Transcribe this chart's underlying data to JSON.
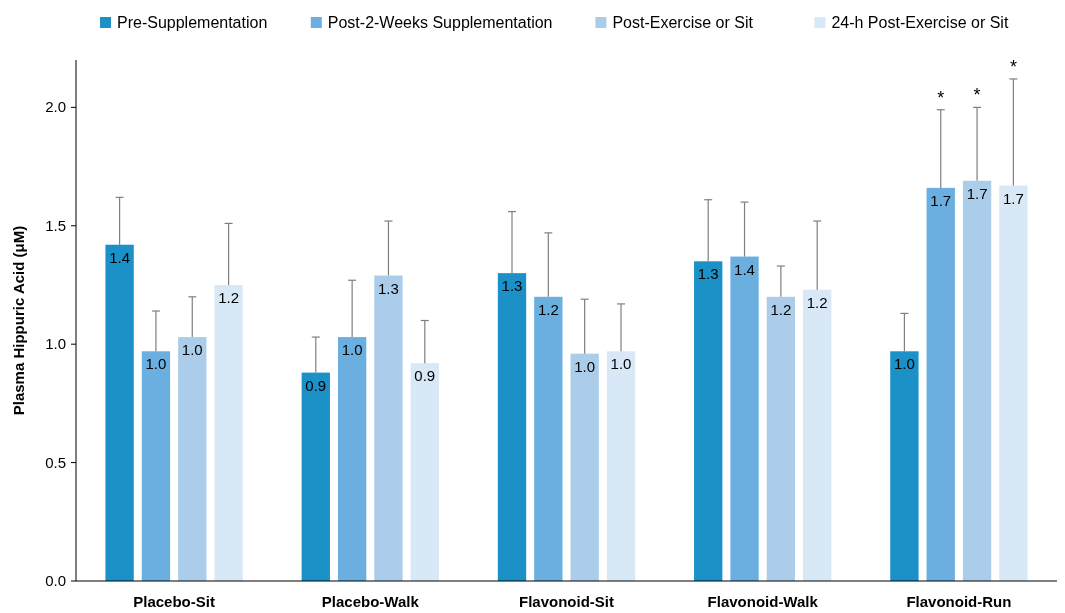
{
  "chart_data": {
    "type": "bar",
    "ylabel": "Plasma Hippuric Acid (μM)",
    "categories": [
      "Placebo-Sit",
      "Placebo-Walk",
      "Flavonoid-Sit",
      "Flavonoid-Walk",
      "Flavonoid-Run"
    ],
    "series": [
      {
        "name": "Pre-Supplementation",
        "color": "#1b91c8",
        "values": [
          1.42,
          0.88,
          1.3,
          1.35,
          0.97
        ],
        "errors": [
          [
            1.42,
            1.62
          ],
          [
            0.88,
            1.03
          ],
          [
            1.3,
            1.56
          ],
          [
            1.35,
            1.61
          ],
          [
            0.97,
            1.13
          ]
        ],
        "value_labels": [
          "1.4",
          "0.9",
          "1.3",
          "1.3",
          "1.0"
        ]
      },
      {
        "name": "Post-2-Weeks Supplementation",
        "color": "#6aafdf",
        "values": [
          0.97,
          1.03,
          1.2,
          1.37,
          1.66
        ],
        "errors": [
          [
            0.97,
            1.14
          ],
          [
            1.03,
            1.27
          ],
          [
            1.2,
            1.47
          ],
          [
            1.37,
            1.6
          ],
          [
            1.66,
            1.99
          ]
        ],
        "value_labels": [
          "1.0",
          "1.0",
          "1.2",
          "1.4",
          "1.7"
        ]
      },
      {
        "name": "Post-Exercise or Sit",
        "color": "#abcde9",
        "values": [
          1.03,
          1.29,
          0.96,
          1.2,
          1.69
        ],
        "errors": [
          [
            1.03,
            1.2
          ],
          [
            1.29,
            1.52
          ],
          [
            0.96,
            1.19
          ],
          [
            1.2,
            1.33
          ],
          [
            1.69,
            2.0
          ]
        ],
        "value_labels": [
          "1.0",
          "1.3",
          "1.0",
          "1.2",
          "1.7"
        ]
      },
      {
        "name": "24-h Post-Exercise or Sit",
        "color": "#d9e8f6",
        "values": [
          1.25,
          0.92,
          0.97,
          1.23,
          1.67
        ],
        "errors": [
          [
            1.25,
            1.51
          ],
          [
            0.92,
            1.1
          ],
          [
            0.97,
            1.17
          ],
          [
            1.23,
            1.52
          ],
          [
            1.67,
            2.12
          ]
        ],
        "value_labels": [
          "1.2",
          "0.9",
          "1.0",
          "1.2",
          "1.7"
        ]
      }
    ],
    "ylim": [
      0,
      2.2
    ],
    "yticks": [
      {
        "value": 0,
        "label": "0.0"
      },
      {
        "value": 0.5,
        "label": "0.5"
      },
      {
        "value": 1,
        "label": "1.0"
      },
      {
        "value": 1.5,
        "label": "1.5"
      },
      {
        "value": 2,
        "label": "2.0"
      }
    ],
    "grid": false,
    "legend": "top",
    "annotations": [
      "*",
      "*",
      "*"
    ]
  }
}
